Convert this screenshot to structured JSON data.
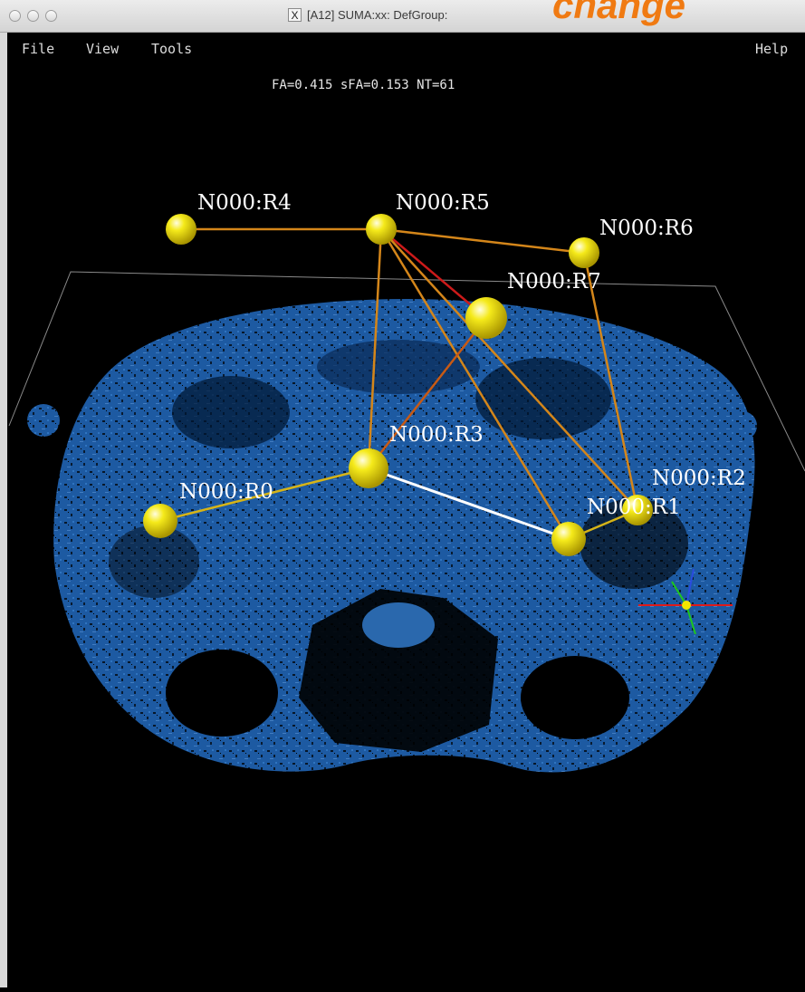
{
  "window": {
    "title": "[A12] SUMA:xx: DefGroup:",
    "overlay_text": "change"
  },
  "menu": {
    "file": "File",
    "view": "View",
    "tools": "Tools",
    "help": "Help"
  },
  "stats": "FA=0.415 sFA=0.153 NT=61",
  "nodes": {
    "r0": "N000:R0",
    "r1": "N000:R1",
    "r2": "N000:R2",
    "r3": "N000:R3",
    "r4": "N000:R4",
    "r5": "N000:R5",
    "r6": "N000:R6",
    "r7": "N000:R7"
  },
  "colors": {
    "node": "#f2e600",
    "edge_orange": "#d4861a",
    "edge_red": "#cc1a1a",
    "edge_dark_orange": "#c85a14",
    "edge_yellow": "#d6b418",
    "edge_white": "#ffffff",
    "brain": "#1e5fa8"
  }
}
